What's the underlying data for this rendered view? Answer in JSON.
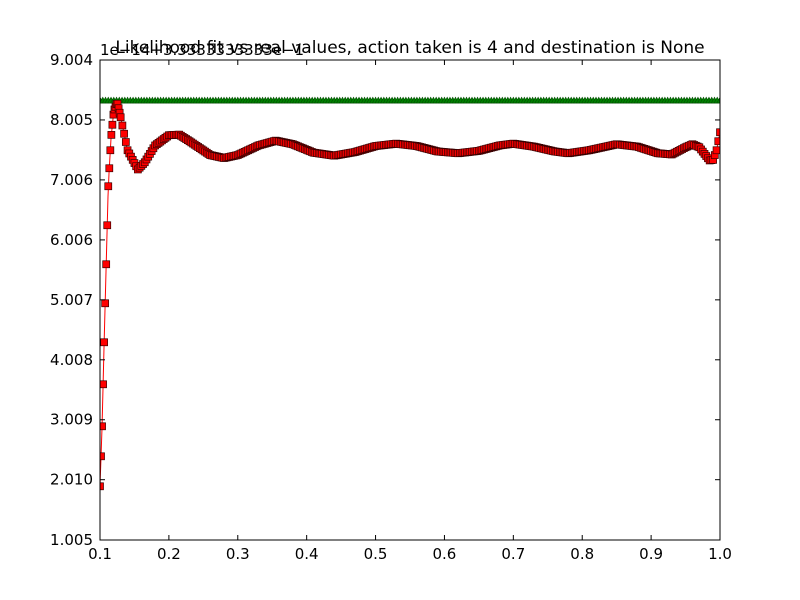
{
  "chart_data": {
    "type": "line",
    "title": "Likelihood fit vs real values, action taken is 4 and destination is None",
    "offset_text": "1e−14+3.3333333333e−1",
    "xlabel": "",
    "ylabel": "",
    "xlim": [
      0.1,
      1.0
    ],
    "ylim": [
      1.005,
      9.004
    ],
    "x_ticks": [
      "0.1",
      "0.2",
      "0.3",
      "0.4",
      "0.5",
      "0.6",
      "0.7",
      "0.8",
      "0.9",
      "1.0"
    ],
    "y_ticks": [
      "1.005",
      "2.010",
      "3.009",
      "4.008",
      "5.007",
      "6.006",
      "7.006",
      "8.005",
      "9.004"
    ],
    "grid": false,
    "legend": "none",
    "series": [
      {
        "color": "#008000",
        "marker": "triangle",
        "style": "flat",
        "values_x": [
          0.1,
          1.0
        ],
        "values_y": [
          8.33,
          8.33
        ]
      },
      {
        "color": "#ff0000",
        "marker": "square",
        "style": "damped-oscillation",
        "values_x": [
          0.1,
          0.103,
          0.106,
          0.109,
          0.112,
          0.116,
          0.12,
          0.125,
          0.13,
          0.14,
          0.155,
          0.165,
          0.18,
          0.2,
          0.215,
          0.23,
          0.26,
          0.28,
          0.3,
          0.33,
          0.355,
          0.38,
          0.41,
          0.44,
          0.47,
          0.5,
          0.53,
          0.56,
          0.59,
          0.62,
          0.65,
          0.68,
          0.7,
          0.73,
          0.76,
          0.78,
          0.81,
          0.85,
          0.88,
          0.91,
          0.93,
          0.95,
          0.96,
          0.97,
          0.985,
          0.99,
          0.995,
          1.0
        ],
        "values_y": [
          1.9,
          2.9,
          4.3,
          5.6,
          6.9,
          7.7,
          8.15,
          8.3,
          8.05,
          7.5,
          7.18,
          7.3,
          7.58,
          7.75,
          7.76,
          7.65,
          7.42,
          7.37,
          7.42,
          7.58,
          7.66,
          7.6,
          7.46,
          7.41,
          7.47,
          7.57,
          7.61,
          7.57,
          7.48,
          7.45,
          7.49,
          7.58,
          7.61,
          7.56,
          7.48,
          7.45,
          7.5,
          7.6,
          7.56,
          7.45,
          7.43,
          7.55,
          7.6,
          7.55,
          7.33,
          7.34,
          7.5,
          7.8
        ]
      }
    ]
  }
}
